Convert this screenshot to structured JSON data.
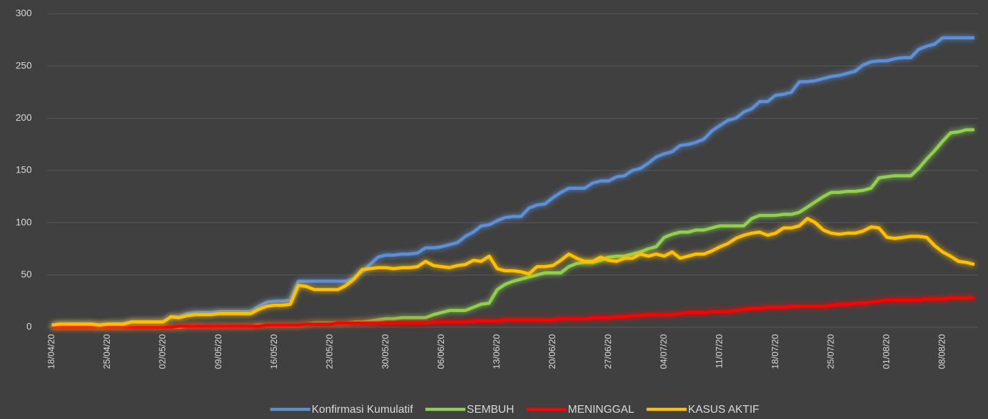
{
  "chart_data": {
    "type": "line",
    "categories": [
      "18/04/20",
      null,
      null,
      null,
      null,
      null,
      null,
      "25/04/20",
      null,
      null,
      null,
      null,
      null,
      null,
      "02/05/20",
      null,
      null,
      null,
      null,
      null,
      null,
      "09/05/20",
      null,
      null,
      null,
      null,
      null,
      null,
      "16/05/20",
      null,
      null,
      null,
      null,
      null,
      null,
      "23/05/20",
      null,
      null,
      null,
      null,
      null,
      null,
      "30/05/20",
      null,
      null,
      null,
      null,
      null,
      null,
      "06/06/20",
      null,
      null,
      null,
      null,
      null,
      null,
      "13/06/20",
      null,
      null,
      null,
      null,
      null,
      null,
      "20/06/20",
      null,
      null,
      null,
      null,
      null,
      null,
      "27/06/20",
      null,
      null,
      null,
      null,
      null,
      null,
      "04/07/20",
      null,
      null,
      null,
      null,
      null,
      null,
      "11/07/20",
      null,
      null,
      null,
      null,
      null,
      null,
      "18/07/20",
      null,
      null,
      null,
      null,
      null,
      null,
      "25/07/20",
      null,
      null,
      null,
      null,
      null,
      null,
      "01/08/20",
      null,
      null,
      null,
      null,
      null,
      null,
      "08/08/20",
      null,
      null,
      null,
      null
    ],
    "series": [
      {
        "name": "Konfirmasi Kumulatif",
        "color": "#5b8fd6",
        "values": [
          2,
          3,
          3,
          3,
          3,
          3,
          2,
          3,
          3,
          3,
          5,
          5,
          5,
          5,
          5,
          10,
          10,
          13,
          14,
          14,
          14,
          15,
          15,
          15,
          15,
          15,
          20,
          24,
          25,
          25,
          26,
          44,
          44,
          44,
          44,
          44,
          44,
          44,
          47,
          53,
          60,
          67,
          69,
          69,
          70,
          70,
          71,
          76,
          76,
          77,
          79,
          81,
          87,
          91,
          97,
          98,
          102,
          105,
          106,
          106,
          114,
          117,
          118,
          124,
          129,
          133,
          133,
          133,
          138,
          140,
          140,
          144,
          145,
          150,
          152,
          157,
          163,
          166,
          168,
          174,
          175,
          177,
          180,
          188,
          193,
          198,
          200,
          206,
          209,
          216,
          216,
          222,
          223,
          225,
          235,
          235,
          236,
          238,
          240,
          241,
          243,
          245,
          251,
          254,
          255,
          255,
          257,
          258,
          258,
          266,
          269,
          271,
          277,
          277,
          277,
          277,
          277
        ]
      },
      {
        "name": "SEMBUH",
        "color": "#8fd14f",
        "values": [
          0,
          0,
          0,
          0,
          0,
          0,
          0,
          0,
          0,
          0,
          0,
          0,
          0,
          0,
          0,
          0,
          0,
          1,
          1,
          1,
          1,
          1,
          1,
          1,
          1,
          1,
          2,
          2,
          2,
          2,
          2,
          2,
          3,
          4,
          4,
          4,
          4,
          4,
          5,
          5,
          6,
          7,
          8,
          8,
          9,
          9,
          9,
          9,
          12,
          14,
          16,
          16,
          16,
          19,
          22,
          23,
          36,
          41,
          44,
          46,
          48,
          50,
          52,
          52,
          52,
          58,
          61,
          62,
          62,
          64,
          67,
          68,
          68,
          70,
          72,
          75,
          77,
          86,
          89,
          91,
          91,
          93,
          93,
          95,
          97,
          97,
          97,
          97,
          104,
          107,
          107,
          107,
          108,
          108,
          110,
          115,
          120,
          125,
          129,
          129,
          130,
          130,
          131,
          133,
          143,
          144,
          145,
          145,
          145,
          152,
          161,
          169,
          178,
          186,
          187,
          189,
          189
        ]
      },
      {
        "name": "MENINGGAL",
        "color": "#ff0000",
        "values": [
          0,
          0,
          0,
          0,
          0,
          0,
          0,
          0,
          0,
          0,
          0,
          0,
          0,
          0,
          0,
          0,
          1,
          1,
          1,
          1,
          1,
          1,
          1,
          1,
          1,
          1,
          1,
          2,
          2,
          2,
          2,
          2,
          3,
          3,
          3,
          3,
          4,
          4,
          4,
          4,
          4,
          4,
          4,
          4,
          4,
          4,
          4,
          4,
          5,
          5,
          5,
          5,
          5,
          6,
          6,
          6,
          6,
          7,
          7,
          7,
          7,
          7,
          7,
          7,
          8,
          8,
          8,
          8,
          9,
          9,
          9,
          10,
          10,
          11,
          11,
          12,
          12,
          12,
          12,
          13,
          14,
          14,
          14,
          15,
          15,
          15,
          16,
          17,
          18,
          18,
          19,
          19,
          19,
          20,
          20,
          20,
          20,
          20,
          21,
          22,
          22,
          23,
          23,
          24,
          25,
          26,
          26,
          26,
          26,
          26,
          27,
          27,
          27,
          28,
          28,
          28,
          28
        ]
      },
      {
        "name": "KASUS AKTIF",
        "color": "#ffc000",
        "values": [
          2,
          3,
          3,
          3,
          3,
          3,
          2,
          3,
          3,
          3,
          5,
          5,
          5,
          5,
          5,
          10,
          9,
          11,
          12,
          12,
          12,
          13,
          13,
          13,
          13,
          13,
          17,
          20,
          21,
          21,
          22,
          40,
          39,
          36,
          36,
          36,
          36,
          40,
          46,
          55,
          56,
          57,
          57,
          56,
          57,
          57,
          58,
          63,
          59,
          58,
          57,
          59,
          60,
          64,
          63,
          68,
          56,
          54,
          54,
          53,
          51,
          58,
          58,
          59,
          64,
          70,
          66,
          63,
          63,
          67,
          64,
          63,
          66,
          66,
          70,
          68,
          70,
          68,
          72,
          66,
          68,
          70,
          70,
          73,
          77,
          80,
          85,
          88,
          90,
          91,
          88,
          90,
          95,
          95,
          97,
          104,
          100,
          93,
          90,
          89,
          90,
          90,
          92,
          96,
          95,
          86,
          85,
          86,
          87,
          87,
          86,
          78,
          72,
          68,
          63,
          62,
          60
        ]
      }
    ],
    "ylim": [
      0,
      300
    ],
    "yticks": [
      0,
      50,
      100,
      150,
      200,
      250,
      300
    ],
    "grid": true,
    "legend": "bottom"
  }
}
